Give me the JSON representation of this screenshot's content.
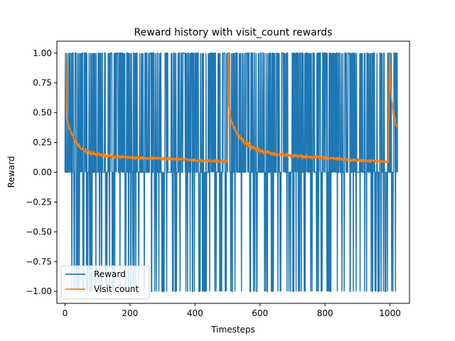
{
  "chart_data": {
    "type": "line",
    "title": "Reward history with visit_count rewards",
    "xlabel": "Timesteps",
    "ylabel": "Reward",
    "xlim": [
      -25,
      1060
    ],
    "ylim": [
      -1.1,
      1.1
    ],
    "xticks": [
      0,
      200,
      400,
      600,
      800,
      1000
    ],
    "yticks": [
      -1.0,
      -0.75,
      -0.5,
      -0.25,
      0.0,
      0.25,
      0.5,
      0.75,
      1.0
    ],
    "xtick_labels": [
      "0",
      "200",
      "400",
      "600",
      "800",
      "1000"
    ],
    "ytick_labels": [
      "−1.00",
      "−0.75",
      "−0.50",
      "−0.25",
      "0.00",
      "0.25",
      "0.50",
      "0.75",
      "1.00"
    ],
    "grid": false,
    "legend_position": "lower-left",
    "series": [
      {
        "name": "Reward",
        "color": "#1f77b4",
        "pattern": "oscillating among -1, 0 and 1 every timestep",
        "x_range": [
          0,
          1023
        ],
        "levels": [
          -1,
          0,
          1
        ]
      },
      {
        "name": "Visit count",
        "color": "#ff7f0e",
        "x": [
          0,
          2,
          5,
          8,
          12,
          20,
          30,
          40,
          50,
          60,
          80,
          100,
          130,
          160,
          200,
          250,
          300,
          350,
          400,
          450,
          500,
          502,
          505,
          510,
          520,
          530,
          550,
          575,
          600,
          650,
          700,
          750,
          800,
          850,
          900,
          950,
          995,
          998,
          1002,
          1006,
          1010,
          1015,
          1020
        ],
        "y": [
          1.0,
          1.0,
          0.55,
          0.42,
          0.38,
          0.33,
          0.28,
          0.23,
          0.2,
          0.18,
          0.16,
          0.15,
          0.14,
          0.13,
          0.125,
          0.12,
          0.115,
          0.11,
          0.1,
          0.095,
          0.09,
          1.0,
          0.55,
          0.45,
          0.38,
          0.32,
          0.26,
          0.21,
          0.18,
          0.15,
          0.14,
          0.13,
          0.12,
          0.11,
          0.1,
          0.095,
          0.09,
          1.0,
          0.7,
          0.6,
          0.5,
          0.45,
          0.38
        ]
      }
    ]
  }
}
